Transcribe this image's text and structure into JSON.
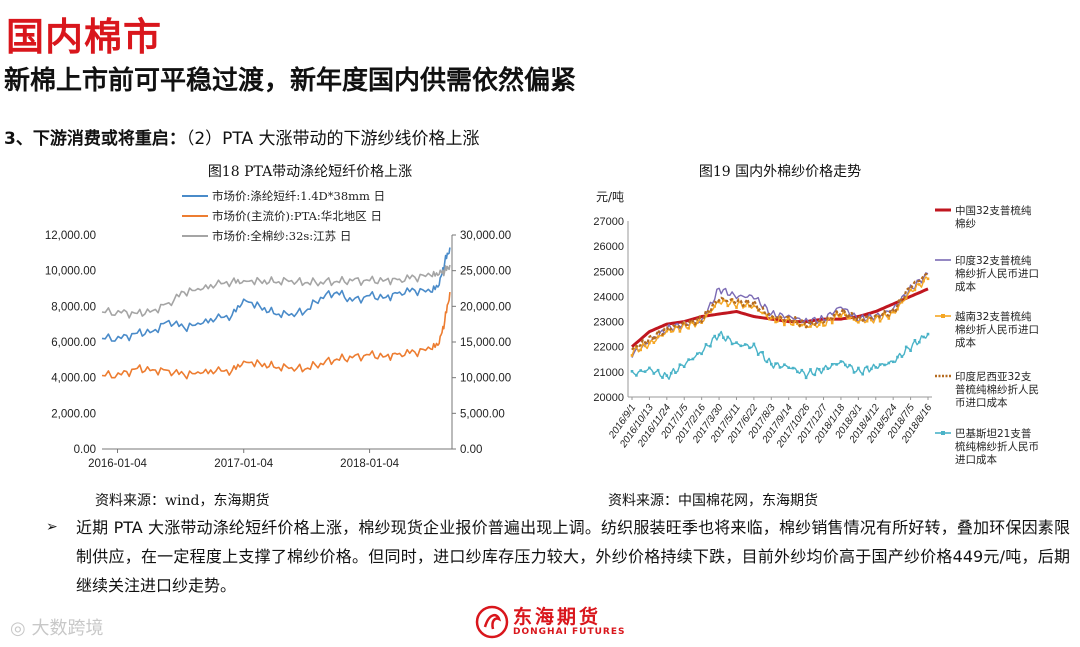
{
  "header": {
    "title": "国内棉市",
    "subtitle": "新棉上市前可平稳过渡，新年度国内供需依然偏紧",
    "section_prefix": "3、下游消费或将重启：",
    "section_rest": "（2）PTA 大涨带动的下游纱线价格上涨"
  },
  "sources": {
    "left": "资料来源：wind，东海期货",
    "right": "资料来源：中国棉花网，东海期货"
  },
  "bullet": {
    "text": "近期 PTA 大涨带动涤纶短纤价格上涨，棉纱现货企业报价普遍出现上调。纺织服装旺季也将来临，棉纱销售情况有所好转，叠加环保因素限制供应，在一定程度上支撑了棉纱价格。但同时，进口纱库存压力较大，外纱价格持续下跌，目前外纱均价高于国产纱价格449元/吨，后期继续关注进口纱走势。"
  },
  "watermark": "大数跨境",
  "logo": {
    "cn": "东海期货",
    "en": "DONGHAI FUTURES",
    "color": "#d9161c"
  },
  "colors": {
    "title_red": "#d9161c"
  },
  "chart_data": [
    {
      "type": "line",
      "title": "图18 PTA带动涤纶短纤价格上涨",
      "x_ticks": [
        "2016-01-04",
        "2017-01-04",
        "2018-01-04"
      ],
      "y_left_ticks": [
        "0.00",
        "2,000.00",
        "4,000.00",
        "6,000.00",
        "8,000.00",
        "10,000.00",
        "12,000.00"
      ],
      "y_right_ticks": [
        "0.00",
        "5,000.00",
        "10,000.00",
        "15,000.00",
        "20,000.00",
        "25,000.00",
        "30,000.00"
      ],
      "y_left_lim": [
        0,
        12000
      ],
      "y_right_lim": [
        0,
        30000
      ],
      "x_range": [
        "2015-11-20",
        "2018-08-31"
      ],
      "legend_position": "top",
      "series": [
        {
          "name": "市场价:涤纶短纤:1.4D*38mm 日",
          "color": "#4a8bc9",
          "axis": "left",
          "points": [
            [
              "2015-11-20",
              6200
            ],
            [
              "2016-01-15",
              6200
            ],
            [
              "2016-03-01",
              6500
            ],
            [
              "2016-04-15",
              6600
            ],
            [
              "2016-06-01",
              7200
            ],
            [
              "2016-07-15",
              6800
            ],
            [
              "2016-09-01",
              7000
            ],
            [
              "2016-10-15",
              7300
            ],
            [
              "2016-12-01",
              7500
            ],
            [
              "2017-01-04",
              8400
            ],
            [
              "2017-02-20",
              8000
            ],
            [
              "2017-04-01",
              7600
            ],
            [
              "2017-05-15",
              7500
            ],
            [
              "2017-07-01",
              7700
            ],
            [
              "2017-08-15",
              8500
            ],
            [
              "2017-10-01",
              8800
            ],
            [
              "2017-11-15",
              8300
            ],
            [
              "2018-01-04",
              8600
            ],
            [
              "2018-02-20",
              8500
            ],
            [
              "2018-04-01",
              8800
            ],
            [
              "2018-05-15",
              8900
            ],
            [
              "2018-07-01",
              8800
            ],
            [
              "2018-07-25",
              9200
            ],
            [
              "2018-08-10",
              10500
            ],
            [
              "2018-08-25",
              11300
            ]
          ]
        },
        {
          "name": "市场价(主流价):PTA:华北地区 日",
          "color": "#ed7d31",
          "axis": "right",
          "points": [
            [
              "2015-11-20",
              10300
            ],
            [
              "2016-01-15",
              10400
            ],
            [
              "2016-03-01",
              11300
            ],
            [
              "2016-04-15",
              11100
            ],
            [
              "2016-06-01",
              11000
            ],
            [
              "2016-07-15",
              10400
            ],
            [
              "2016-09-01",
              10600
            ],
            [
              "2016-10-15",
              10900
            ],
            [
              "2016-12-01",
              11000
            ],
            [
              "2017-01-04",
              12300
            ],
            [
              "2017-02-20",
              12000
            ],
            [
              "2017-04-01",
              11500
            ],
            [
              "2017-05-15",
              11300
            ],
            [
              "2017-07-01",
              11200
            ],
            [
              "2017-08-15",
              12000
            ],
            [
              "2017-10-01",
              12600
            ],
            [
              "2017-11-15",
              12800
            ],
            [
              "2018-01-04",
              13200
            ],
            [
              "2018-02-20",
              13000
            ],
            [
              "2018-04-01",
              13400
            ],
            [
              "2018-05-15",
              13600
            ],
            [
              "2018-07-01",
              14000
            ],
            [
              "2018-07-25",
              14800
            ],
            [
              "2018-08-10",
              18000
            ],
            [
              "2018-08-25",
              22000
            ]
          ]
        },
        {
          "name": "市场价:全棉纱:32s:江苏 日",
          "color": "#a5a5a5",
          "axis": "right",
          "points": [
            [
              "2015-11-20",
              19200
            ],
            [
              "2016-01-15",
              19100
            ],
            [
              "2016-03-01",
              19000
            ],
            [
              "2016-04-15",
              19400
            ],
            [
              "2016-06-01",
              20500
            ],
            [
              "2016-07-15",
              22000
            ],
            [
              "2016-09-01",
              22300
            ],
            [
              "2016-10-15",
              23000
            ],
            [
              "2016-12-01",
              23500
            ],
            [
              "2017-01-04",
              23600
            ],
            [
              "2017-02-20",
              23600
            ],
            [
              "2017-04-01",
              23400
            ],
            [
              "2017-05-15",
              23500
            ],
            [
              "2017-07-01",
              23300
            ],
            [
              "2017-08-15",
              23400
            ],
            [
              "2017-10-01",
              23500
            ],
            [
              "2017-11-15",
              23600
            ],
            [
              "2018-01-04",
              23600
            ],
            [
              "2018-02-20",
              23700
            ],
            [
              "2018-04-01",
              23800
            ],
            [
              "2018-05-15",
              24100
            ],
            [
              "2018-07-01",
              24300
            ],
            [
              "2018-07-25",
              24500
            ],
            [
              "2018-08-10",
              25000
            ],
            [
              "2018-08-25",
              25800
            ]
          ]
        }
      ]
    },
    {
      "type": "line",
      "title": "图19 国内外棉纱价格走势",
      "ylabel": "元/吨",
      "ylim": [
        20000,
        27000
      ],
      "y_ticks": [
        "20000",
        "21000",
        "22000",
        "23000",
        "24000",
        "25000",
        "26000",
        "27000"
      ],
      "x_categories": [
        "2016/9/1",
        "2016/10/13",
        "2016/11/24",
        "2017/1/5",
        "2017/2/16",
        "2017/3/30",
        "2017/5/11",
        "2017/6/22",
        "2017/8/3",
        "2017/9/14",
        "2017/10/26",
        "2017/12/7",
        "2018/1/18",
        "2018/3/1",
        "2018/4/12",
        "2018/5/24",
        "2018/7/5",
        "2018/8/16"
      ],
      "legend_position": "right",
      "series": [
        {
          "name": "中国32支普梳纯棉纱",
          "color": "#c0161f",
          "style": "solid-thick",
          "values": [
            22000,
            22600,
            22900,
            23000,
            23200,
            23300,
            23400,
            23200,
            23100,
            23000,
            23000,
            23100,
            23100,
            23200,
            23400,
            23700,
            24000,
            24300
          ]
        },
        {
          "name": "印度32支普梳纯棉纱折人民币进口成本",
          "color": "#7b6ab4",
          "style": "solid",
          "values": [
            21700,
            22200,
            22700,
            22900,
            23000,
            24300,
            24000,
            24000,
            23300,
            23200,
            23000,
            23100,
            23600,
            23100,
            23200,
            23500,
            24300,
            24900
          ]
        },
        {
          "name": "越南32支普梳纯棉纱折人民币进口成本",
          "color": "#f5a623",
          "style": "solid-markers",
          "values": [
            21800,
            22100,
            22600,
            22800,
            23000,
            23800,
            23700,
            23600,
            23100,
            23000,
            22800,
            22900,
            23300,
            23000,
            23100,
            23300,
            24200,
            24700
          ]
        },
        {
          "name": "印度尼西亚32支普梳纯棉纱折人民币进口成本",
          "color": "#b46a1f",
          "style": "dashed",
          "values": [
            21900,
            22300,
            22700,
            22900,
            23100,
            23900,
            23800,
            23700,
            23200,
            23100,
            22900,
            23000,
            23400,
            23100,
            23200,
            23400,
            24400,
            24900
          ]
        },
        {
          "name": "巴基斯坦21支普梳纯棉纱折人民币进口成本",
          "color": "#4ab3c8",
          "style": "solid-markers",
          "values": [
            20900,
            21100,
            20800,
            21300,
            21800,
            22500,
            22100,
            22000,
            21300,
            21200,
            20900,
            21100,
            21400,
            21000,
            21200,
            21400,
            22000,
            22500
          ]
        }
      ]
    }
  ]
}
